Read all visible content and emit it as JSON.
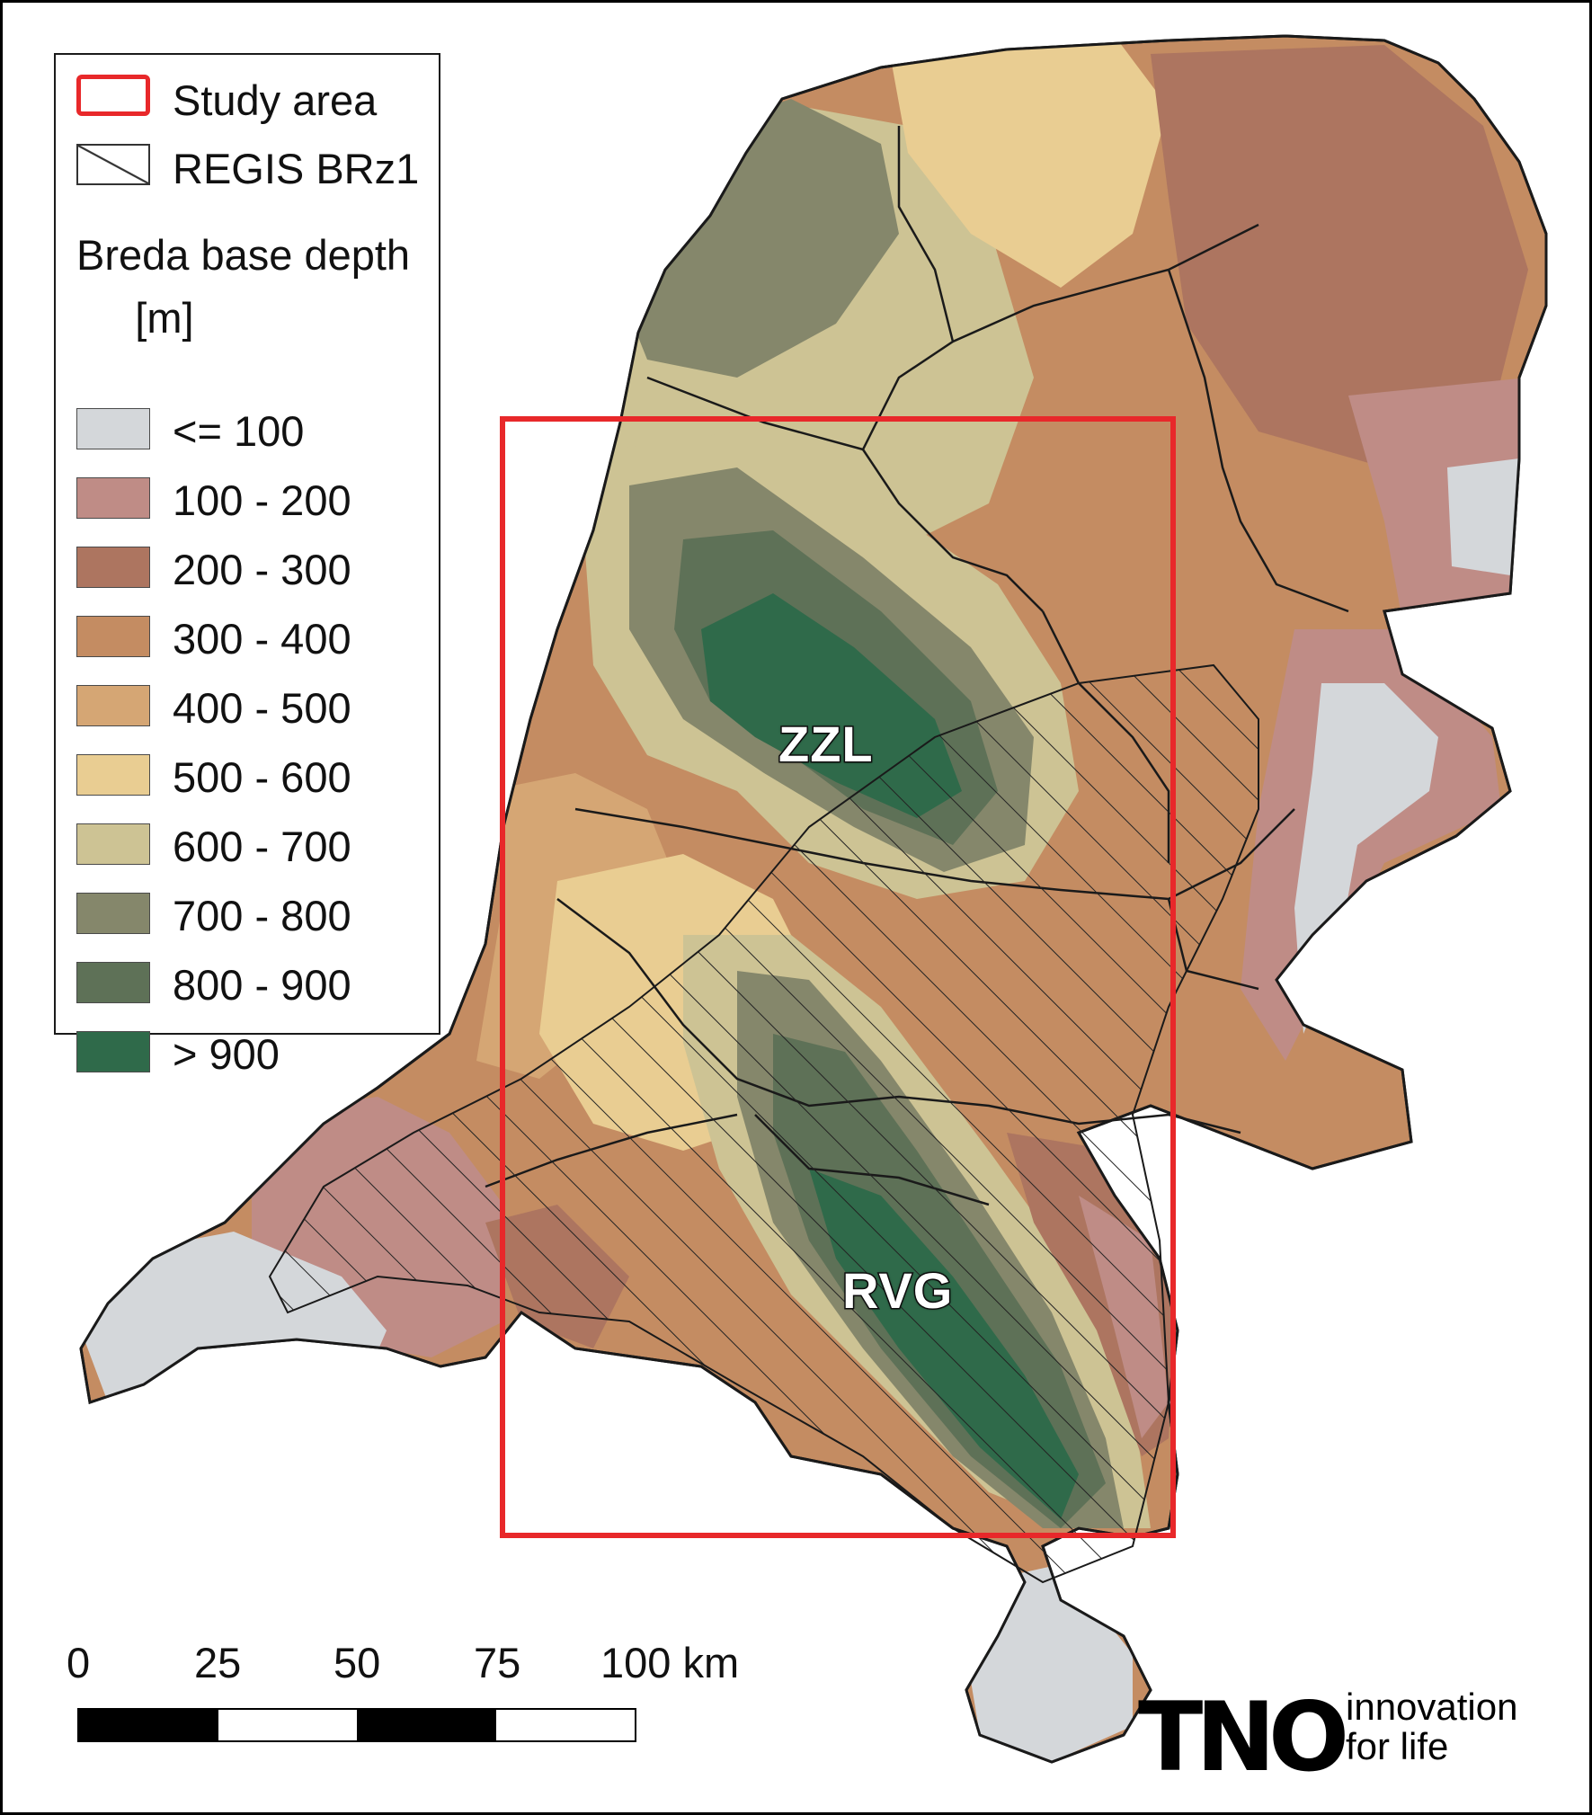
{
  "legend": {
    "study_area": "Study area",
    "regis": "REGIS BRz1",
    "title": "Breda base depth\n     [m]",
    "classes": [
      {
        "label": "<= 100",
        "color": "#d4d7da"
      },
      {
        "label": "100 - 200",
        "color": "#bf8c86"
      },
      {
        "label": "200 - 300",
        "color": "#ad7560"
      },
      {
        "label": "300 - 400",
        "color": "#c48c62"
      },
      {
        "label": "400 - 500",
        "color": "#d5a674"
      },
      {
        "label": "500 - 600",
        "color": "#e9cd92"
      },
      {
        "label": "600 - 700",
        "color": "#cdc394"
      },
      {
        "label": "700 - 800",
        "color": "#85876b"
      },
      {
        "label": "800 - 900",
        "color": "#5e7157"
      },
      {
        "label": "> 900",
        "color": "#2f6a4a"
      }
    ],
    "study_area_color": "#e8282a"
  },
  "labels": {
    "zzl": "ZZL",
    "rvg": "RVG"
  },
  "scalebar": {
    "ticks": [
      "0",
      "25",
      "50",
      "75",
      "100 km"
    ]
  },
  "logo": {
    "mark": "TNO",
    "tagline": "innovation\nfor life"
  }
}
